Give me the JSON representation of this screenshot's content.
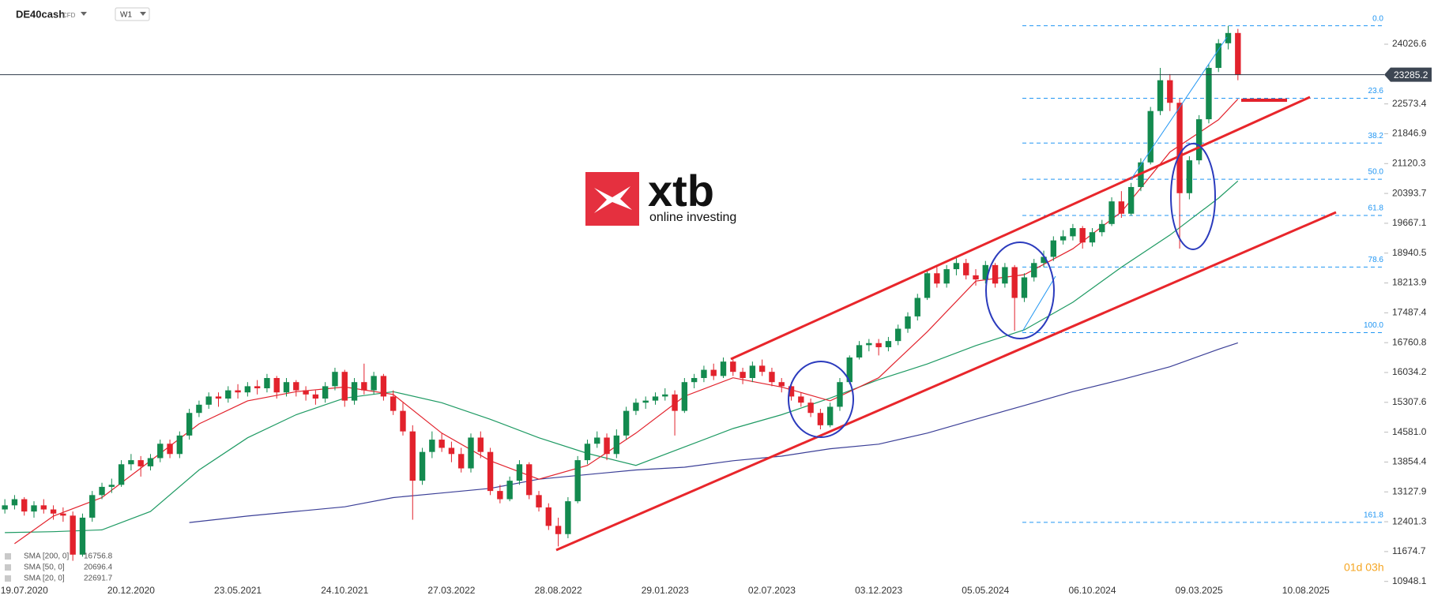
{
  "header": {
    "symbol": "DE40cash",
    "badge": "CFD",
    "timeframe": "W1"
  },
  "logo": {
    "brand": "xtb",
    "tagline": "online investing"
  },
  "countdown": "01d 03h",
  "chart_data": {
    "type": "candlestick",
    "categories": [
      null,
      null,
      "19.07.2020",
      null,
      null,
      null,
      null,
      null,
      null,
      null,
      null,
      null,
      null,
      "20.12.2020",
      null,
      null,
      null,
      null,
      null,
      null,
      null,
      null,
      null,
      null,
      "23.05.2021",
      null,
      null,
      null,
      null,
      null,
      null,
      null,
      null,
      null,
      null,
      "24.10.2021",
      null,
      null,
      null,
      null,
      null,
      null,
      null,
      null,
      null,
      null,
      "27.03.2022",
      null,
      null,
      null,
      null,
      null,
      null,
      null,
      null,
      null,
      null,
      "28.08.2022",
      null,
      null,
      null,
      null,
      null,
      null,
      null,
      null,
      null,
      null,
      "29.01.2023",
      null,
      null,
      null,
      null,
      null,
      null,
      null,
      null,
      null,
      null,
      "02.07.2023",
      null,
      null,
      null,
      null,
      null,
      null,
      null,
      null,
      null,
      null,
      "03.12.2023",
      null,
      null,
      null,
      null,
      null,
      null,
      null,
      null,
      null,
      null,
      "05.05.2024",
      null,
      null,
      null,
      null,
      null,
      null,
      null,
      null,
      null,
      null,
      "06.10.2024",
      null,
      null,
      null,
      null,
      null,
      null,
      null,
      null,
      null,
      null,
      "09.03.2025",
      null,
      null,
      null,
      null,
      null,
      null,
      null,
      null,
      null,
      null,
      "10.08.2025",
      null,
      null,
      null,
      null,
      null,
      null,
      null
    ],
    "ohlc": [
      [
        12700,
        12950,
        12600,
        12800
      ],
      [
        12800,
        13050,
        12700,
        12950
      ],
      [
        12950,
        13000,
        12550,
        12650
      ],
      [
        12650,
        12900,
        12500,
        12800
      ],
      [
        12800,
        12950,
        12600,
        12700
      ],
      [
        12700,
        12800,
        12450,
        12600
      ],
      [
        12600,
        12750,
        12400,
        12550
      ],
      [
        12550,
        12650,
        11450,
        11600
      ],
      [
        11600,
        12600,
        11550,
        12500
      ],
      [
        12500,
        13150,
        12400,
        13050
      ],
      [
        13050,
        13350,
        12950,
        13250
      ],
      [
        13250,
        13450,
        13100,
        13300
      ],
      [
        13300,
        13900,
        13250,
        13800
      ],
      [
        13800,
        14050,
        13650,
        13900
      ],
      [
        13900,
        14000,
        13500,
        13750
      ],
      [
        13750,
        14050,
        13650,
        13950
      ],
      [
        13950,
        14400,
        13850,
        14300
      ],
      [
        14300,
        14400,
        13950,
        14050
      ],
      [
        14050,
        14600,
        13950,
        14500
      ],
      [
        14500,
        15150,
        14400,
        15050
      ],
      [
        15050,
        15350,
        14950,
        15250
      ],
      [
        15250,
        15550,
        15150,
        15450
      ],
      [
        15450,
        15550,
        15200,
        15400
      ],
      [
        15400,
        15700,
        15300,
        15600
      ],
      [
        15600,
        15750,
        15400,
        15550
      ],
      [
        15550,
        15800,
        15450,
        15700
      ],
      [
        15700,
        15850,
        15500,
        15650
      ],
      [
        15650,
        16000,
        15550,
        15900
      ],
      [
        15900,
        15950,
        15400,
        15550
      ],
      [
        15550,
        15900,
        15450,
        15800
      ],
      [
        15800,
        15850,
        15450,
        15600
      ],
      [
        15600,
        15700,
        15350,
        15500
      ],
      [
        15500,
        15600,
        15250,
        15400
      ],
      [
        15400,
        15800,
        15300,
        15700
      ],
      [
        15700,
        16150,
        15600,
        16050
      ],
      [
        16050,
        16100,
        15200,
        15350
      ],
      [
        15350,
        15900,
        15250,
        15800
      ],
      [
        15800,
        16250,
        15500,
        15600
      ],
      [
        15600,
        16050,
        15500,
        15950
      ],
      [
        15950,
        16000,
        15350,
        15450
      ],
      [
        15450,
        15600,
        15000,
        15100
      ],
      [
        15100,
        15300,
        14500,
        14600
      ],
      [
        14600,
        14750,
        12450,
        13400
      ],
      [
        13400,
        14200,
        13300,
        14100
      ],
      [
        14100,
        14600,
        13950,
        14400
      ],
      [
        14400,
        14550,
        14100,
        14200
      ],
      [
        14200,
        14350,
        13850,
        14050
      ],
      [
        14050,
        14200,
        13600,
        13700
      ],
      [
        13700,
        14550,
        13600,
        14450
      ],
      [
        14450,
        14600,
        13950,
        14100
      ],
      [
        14100,
        14200,
        13050,
        13150
      ],
      [
        13150,
        13300,
        12850,
        12950
      ],
      [
        12950,
        13500,
        12900,
        13400
      ],
      [
        13400,
        13900,
        13300,
        13800
      ],
      [
        13800,
        13850,
        12950,
        13050
      ],
      [
        13050,
        13150,
        12650,
        12750
      ],
      [
        12750,
        12850,
        12200,
        12300
      ],
      [
        12300,
        12500,
        11800,
        12100
      ],
      [
        12100,
        13000,
        12000,
        12900
      ],
      [
        12900,
        14000,
        12850,
        13900
      ],
      [
        13900,
        14400,
        13800,
        14300
      ],
      [
        14300,
        14600,
        14200,
        14450
      ],
      [
        14450,
        14550,
        13900,
        14050
      ],
      [
        14050,
        14650,
        13950,
        14500
      ],
      [
        14500,
        15200,
        14400,
        15100
      ],
      [
        15100,
        15400,
        15000,
        15300
      ],
      [
        15300,
        15450,
        15150,
        15350
      ],
      [
        15350,
        15550,
        15250,
        15450
      ],
      [
        15450,
        15650,
        15350,
        15500
      ],
      [
        15500,
        15600,
        14500,
        15100
      ],
      [
        15100,
        15900,
        15050,
        15800
      ],
      [
        15800,
        16000,
        15650,
        15900
      ],
      [
        15900,
        16200,
        15800,
        16100
      ],
      [
        16100,
        16250,
        15850,
        15950
      ],
      [
        15950,
        16400,
        15900,
        16300
      ],
      [
        16300,
        16350,
        15950,
        16050
      ],
      [
        16050,
        16150,
        15750,
        15900
      ],
      [
        15900,
        16300,
        15800,
        16200
      ],
      [
        16200,
        16350,
        15950,
        16050
      ],
      [
        16050,
        16150,
        15700,
        15800
      ],
      [
        15800,
        15900,
        15550,
        15700
      ],
      [
        15700,
        15800,
        15350,
        15450
      ],
      [
        15450,
        15550,
        15200,
        15300
      ],
      [
        15300,
        15400,
        14950,
        15050
      ],
      [
        15050,
        15150,
        14650,
        14750
      ],
      [
        14750,
        15300,
        14700,
        15200
      ],
      [
        15200,
        15900,
        15100,
        15800
      ],
      [
        15800,
        16450,
        15750,
        16400
      ],
      [
        16400,
        16800,
        16350,
        16700
      ],
      [
        16700,
        16850,
        16550,
        16750
      ],
      [
        16750,
        16850,
        16450,
        16650
      ],
      [
        16650,
        16900,
        16550,
        16800
      ],
      [
        16800,
        17200,
        16700,
        17100
      ],
      [
        17100,
        17500,
        17000,
        17400
      ],
      [
        17400,
        17950,
        17300,
        17850
      ],
      [
        17850,
        18550,
        17800,
        18450
      ],
      [
        18450,
        18600,
        18100,
        18200
      ],
      [
        18200,
        18650,
        18100,
        18550
      ],
      [
        18550,
        18850,
        18400,
        18700
      ],
      [
        18700,
        18800,
        18300,
        18400
      ],
      [
        18400,
        18550,
        18150,
        18300
      ],
      [
        18300,
        18750,
        18200,
        18650
      ],
      [
        18650,
        18700,
        18100,
        18200
      ],
      [
        18200,
        18700,
        18100,
        18600
      ],
      [
        18600,
        18650,
        17050,
        17850
      ],
      [
        17850,
        18450,
        17750,
        18350
      ],
      [
        18350,
        18800,
        18250,
        18700
      ],
      [
        18700,
        19000,
        18600,
        18850
      ],
      [
        18850,
        19350,
        18750,
        19250
      ],
      [
        19250,
        19500,
        19150,
        19350
      ],
      [
        19350,
        19650,
        19250,
        19550
      ],
      [
        19550,
        19600,
        19050,
        19200
      ],
      [
        19200,
        19550,
        19100,
        19450
      ],
      [
        19450,
        19750,
        19350,
        19650
      ],
      [
        19650,
        20300,
        19600,
        20200
      ],
      [
        20200,
        20450,
        19800,
        19900
      ],
      [
        19900,
        20650,
        19850,
        20550
      ],
      [
        20550,
        21250,
        20450,
        21150
      ],
      [
        21150,
        22500,
        21100,
        22400
      ],
      [
        22400,
        23450,
        22300,
        23150
      ],
      [
        23150,
        23300,
        22400,
        22600
      ],
      [
        22600,
        22700,
        19050,
        20400
      ],
      [
        20400,
        21300,
        20250,
        21200
      ],
      [
        21200,
        22300,
        21100,
        22200
      ],
      [
        22200,
        23550,
        22100,
        23450
      ],
      [
        23450,
        24150,
        23350,
        24050
      ],
      [
        24050,
        24475,
        23900,
        24300
      ],
      [
        24300,
        24400,
        23150,
        23285.2
      ],
      null,
      null,
      null,
      null,
      null,
      null,
      null,
      null,
      null,
      null,
      null,
      null,
      null,
      null
    ],
    "up_color": "#138a4f",
    "down_color": "#e2222c",
    "series": [
      {
        "name": "SMA [200, 0]",
        "color": "#3b3f97",
        "x": [
          19,
          25,
          30,
          35,
          40,
          45,
          50,
          55,
          60,
          65,
          70,
          75,
          80,
          85,
          90,
          95,
          100,
          105,
          110,
          115,
          120,
          125,
          127
        ],
        "values": [
          12382,
          12540,
          12652,
          12764,
          12988,
          13101,
          13213,
          13437,
          13549,
          13662,
          13729,
          13886,
          13998,
          14178,
          14290,
          14559,
          14896,
          15232,
          15569,
          15860,
          16174,
          16600,
          16756.8
        ]
      },
      {
        "name": "SMA [50, 0]",
        "color": "#1e9a63",
        "x": [
          0,
          5,
          10,
          15,
          20,
          25,
          30,
          35,
          40,
          45,
          50,
          55,
          60,
          65,
          70,
          75,
          80,
          85,
          90,
          95,
          100,
          105,
          110,
          115,
          120,
          125,
          127
        ],
        "values": [
          12136,
          12158,
          12203,
          12651,
          13661,
          14446,
          15007,
          15411,
          15568,
          15299,
          14895,
          14446,
          14065,
          13773,
          14222,
          14671,
          15007,
          15411,
          15860,
          16241,
          16690,
          17071,
          17744,
          18597,
          19382,
          20279,
          20696.4
        ]
      },
      {
        "name": "SMA [20, 0]",
        "color": "#e2222c",
        "x": [
          1,
          5,
          10,
          15,
          20,
          25,
          30,
          35,
          40,
          45,
          50,
          55,
          60,
          65,
          70,
          75,
          80,
          85,
          90,
          95,
          100,
          105,
          110,
          115,
          120,
          125,
          127
        ],
        "values": [
          11866,
          12539,
          12988,
          13885,
          14783,
          15344,
          15568,
          15680,
          15501,
          14559,
          13885,
          13436,
          13773,
          14559,
          15456,
          15905,
          15680,
          15344,
          15905,
          17026,
          18260,
          18417,
          19046,
          19943,
          21402,
          22186,
          22691.7
        ]
      }
    ],
    "fibonacci": {
      "high": 24475,
      "low": 17004,
      "color": "#2196f3",
      "levels": [
        {
          "value": 0,
          "label": "0.0"
        },
        23.6,
        38.2,
        {
          "value": 50,
          "label": "50.0"
        },
        61.8,
        78.6,
        {
          "value": 100,
          "label": "100.0"
        },
        161.8
      ]
    },
    "ylim": [
      10885,
      25103
    ],
    "yticks": [
      24026.6,
      22573.4,
      21846.9,
      21120.3,
      20393.7,
      19667.1,
      18940.5,
      18213.9,
      17487.4,
      16760.8,
      16034.2,
      15307.6,
      {
        "value": 14581,
        "label": "14581.0"
      },
      13854.4,
      13127.9,
      12401.3,
      11674.7,
      10948.1
    ]
  }
}
